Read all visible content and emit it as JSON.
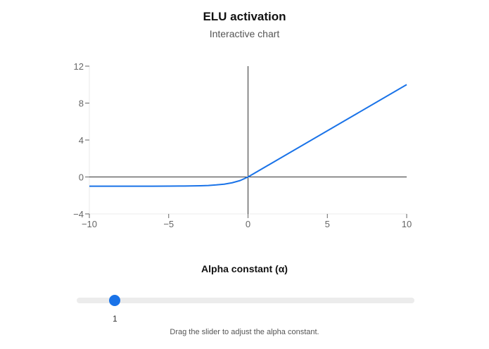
{
  "header": {
    "title": "ELU activation",
    "subtitle": "Interactive chart"
  },
  "chart_data": {
    "type": "line",
    "title": "ELU activation",
    "subtitle": "Interactive chart",
    "xlabel": "",
    "ylabel": "",
    "xlim": [
      -10,
      10
    ],
    "ylim": [
      -4,
      12
    ],
    "x_ticks": [
      -10,
      -5,
      0,
      5,
      10
    ],
    "y_ticks": [
      -4,
      0,
      4,
      8,
      12
    ],
    "x_tick_labels": [
      "−10",
      "−5",
      "0",
      "5",
      "10"
    ],
    "y_tick_labels": [
      "−4",
      "0",
      "4",
      "8",
      "12"
    ],
    "grid": false,
    "line_color": "#1a73e8",
    "series": [
      {
        "x": [
          -10,
          -9,
          -8,
          -7,
          -6,
          -5,
          -4,
          -3,
          -2.5,
          -2,
          -1.5,
          -1,
          -0.5,
          0,
          2,
          4,
          6,
          8,
          10
        ],
        "y": [
          -1.0,
          -1.0,
          -1.0,
          -1.0,
          -1.0,
          -0.99,
          -0.98,
          -0.95,
          -0.92,
          -0.86,
          -0.78,
          -0.63,
          -0.39,
          0,
          2,
          4,
          6,
          8,
          10
        ]
      }
    ]
  },
  "slider": {
    "label": "Alpha constant (α)",
    "value": "1",
    "min": 0,
    "max": 10,
    "fraction": 0.1,
    "hint": "Drag the slider to adjust the alpha constant."
  },
  "colors": {
    "accent": "#1a73e8",
    "track": "#ececec",
    "axis": "#333333"
  }
}
